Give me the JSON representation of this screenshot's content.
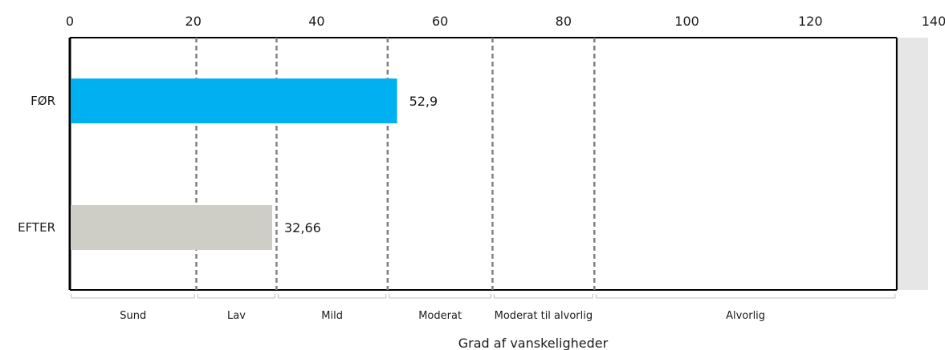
{
  "chart_data": {
    "type": "bar",
    "orientation": "horizontal",
    "categories": [
      "FØR",
      "EFTER"
    ],
    "values": [
      52.9,
      32.66
    ],
    "value_labels": [
      "52,9",
      "32,66"
    ],
    "bar_colors": [
      "#00b0f0",
      "#cfcec6"
    ],
    "xlim": [
      0,
      140
    ],
    "x_ticks": [
      0,
      20,
      40,
      60,
      80,
      100,
      120,
      140
    ],
    "x_tick_labels": [
      "0",
      "20",
      "40",
      "60",
      "80",
      "100",
      "120",
      "140"
    ],
    "x_axis_position": "top",
    "thresholds": [
      20.5,
      33.5,
      51.5,
      68.5,
      85
    ],
    "threshold_line_color": "#808080",
    "gray_region_start": 134,
    "gray_region_color": "#e6e6e6",
    "zones": [
      {
        "label": "Sund",
        "from": 0,
        "to": 20.5
      },
      {
        "label": "Lav",
        "from": 20.5,
        "to": 33.5
      },
      {
        "label": "Mild",
        "from": 33.5,
        "to": 51.5
      },
      {
        "label": "Moderat",
        "from": 51.5,
        "to": 68.5
      },
      {
        "label": "Moderat til alvorlig",
        "from": 68.5,
        "to": 85
      },
      {
        "label": "Alvorlig",
        "from": 85,
        "to": 134
      }
    ],
    "xlabel": "Grad af vanskeligheder"
  }
}
